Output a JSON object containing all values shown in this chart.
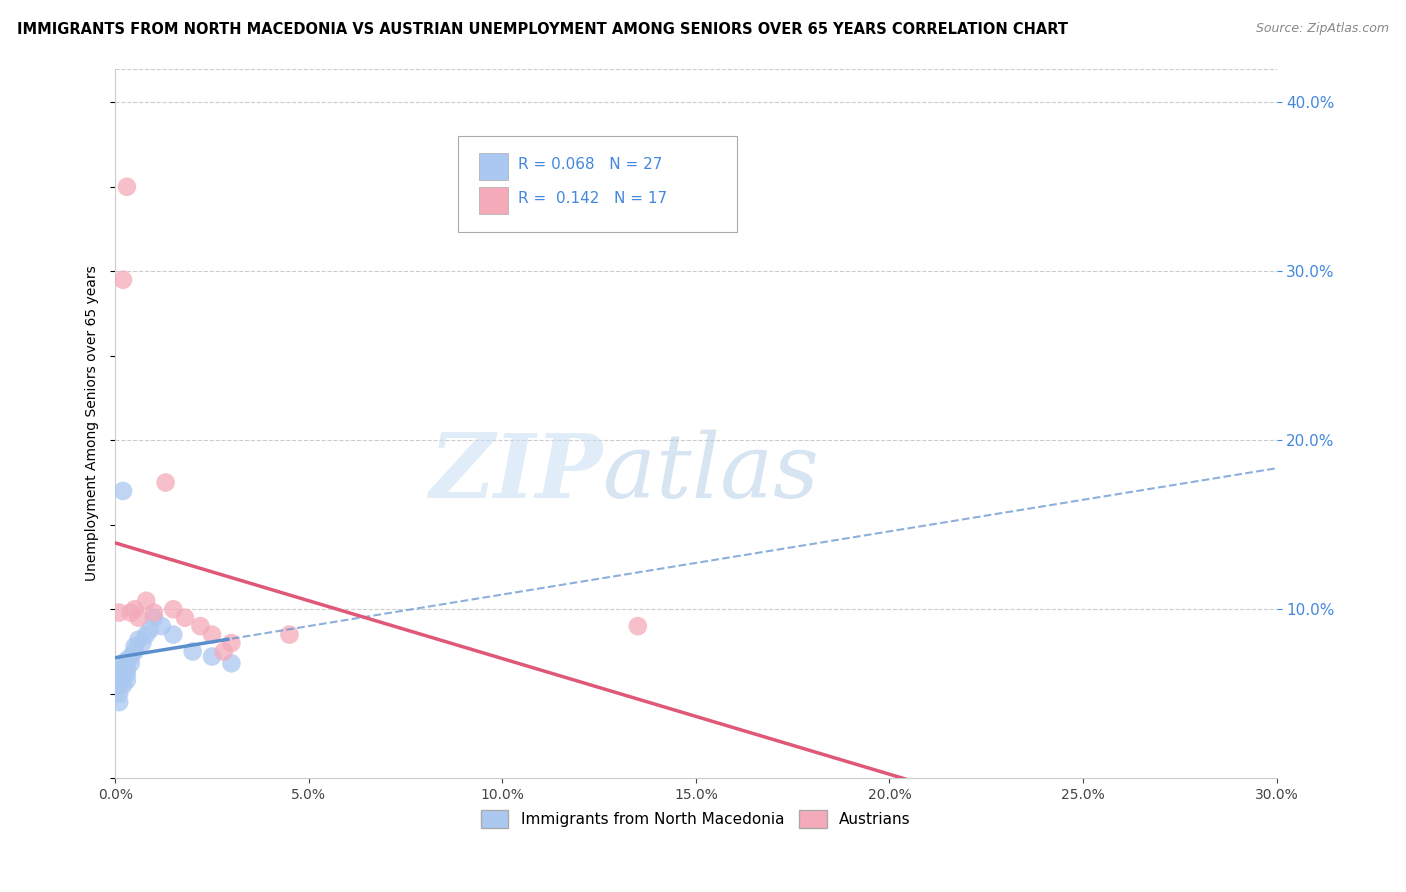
{
  "title": "IMMIGRANTS FROM NORTH MACEDONIA VS AUSTRIAN UNEMPLOYMENT AMONG SENIORS OVER 65 YEARS CORRELATION CHART",
  "source": "Source: ZipAtlas.com",
  "ylabel": "Unemployment Among Seniors over 65 years",
  "xlim": [
    0.0,
    0.3
  ],
  "ylim": [
    0.0,
    0.42
  ],
  "xticks": [
    0.0,
    0.05,
    0.1,
    0.15,
    0.2,
    0.25,
    0.3
  ],
  "yticks_right": [
    0.1,
    0.2,
    0.3,
    0.4
  ],
  "r_blue": 0.068,
  "n_blue": 27,
  "r_pink": 0.142,
  "n_pink": 17,
  "blue_scatter_x": [
    0.001,
    0.001,
    0.001,
    0.001,
    0.002,
    0.002,
    0.002,
    0.002,
    0.003,
    0.003,
    0.003,
    0.003,
    0.004,
    0.004,
    0.005,
    0.005,
    0.006,
    0.007,
    0.008,
    0.009,
    0.01,
    0.012,
    0.015,
    0.02,
    0.025,
    0.03,
    0.002
  ],
  "blue_scatter_y": [
    0.055,
    0.06,
    0.05,
    0.045,
    0.06,
    0.065,
    0.068,
    0.055,
    0.058,
    0.062,
    0.07,
    0.065,
    0.072,
    0.068,
    0.075,
    0.078,
    0.082,
    0.08,
    0.085,
    0.088,
    0.095,
    0.09,
    0.085,
    0.075,
    0.072,
    0.068,
    0.17
  ],
  "pink_scatter_x": [
    0.001,
    0.002,
    0.003,
    0.004,
    0.005,
    0.006,
    0.008,
    0.01,
    0.013,
    0.015,
    0.018,
    0.022,
    0.025,
    0.03,
    0.045,
    0.135,
    0.028
  ],
  "pink_scatter_y": [
    0.098,
    0.295,
    0.35,
    0.098,
    0.1,
    0.095,
    0.105,
    0.098,
    0.175,
    0.1,
    0.095,
    0.09,
    0.085,
    0.08,
    0.085,
    0.09,
    0.075
  ],
  "blue_color": "#aac8f0",
  "pink_color": "#f4aab8",
  "blue_line_color": "#5b8fcc",
  "pink_line_color": "#e05878",
  "legend_label_blue": "Immigrants from North Macedonia",
  "legend_label_pink": "Austrians",
  "watermark_zip": "ZIP",
  "watermark_atlas": "atlas",
  "background_color": "#ffffff",
  "grid_color": "#cccccc",
  "right_axis_color": "#4488dd"
}
